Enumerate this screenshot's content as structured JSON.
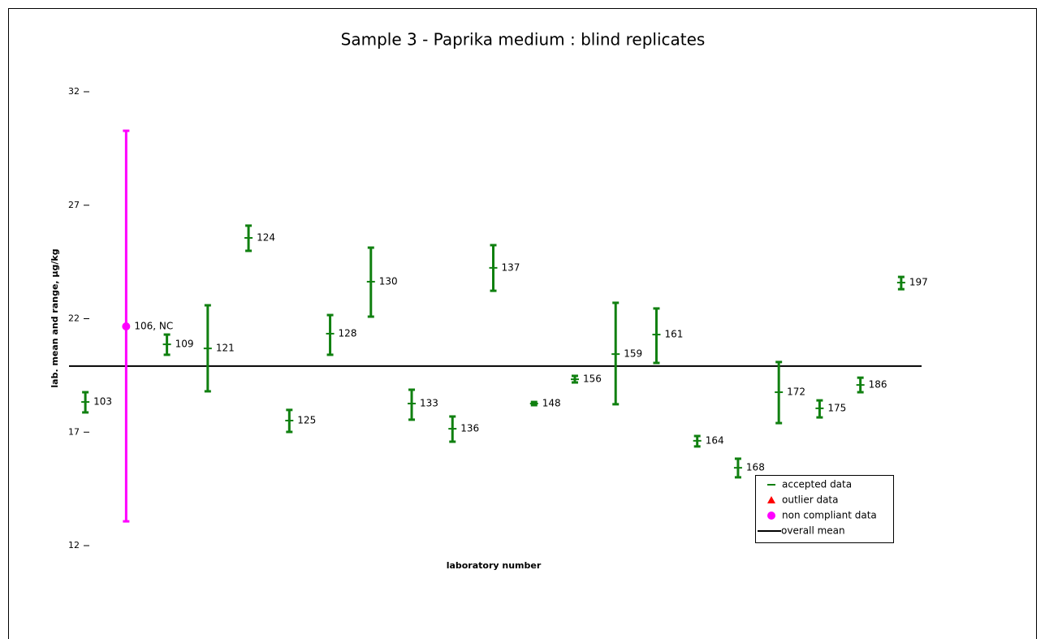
{
  "chart_data": {
    "type": "errorbar",
    "title": "Sample 3 - Paprika medium : blind replicates",
    "xlabel": "laboratory number",
    "ylabel": "lab. mean and range, µg/kg",
    "categories": [
      "103",
      "106, NC",
      "109",
      "121",
      "124",
      "125",
      "128",
      "130",
      "133",
      "136",
      "137",
      "148",
      "156",
      "159",
      "161",
      "164",
      "168",
      "172",
      "175",
      "186",
      "197"
    ],
    "ylim": [
      12,
      32
    ],
    "yticks": [
      12,
      17,
      22,
      27,
      32
    ],
    "legend": "lower right",
    "series": [
      {
        "name": "accepted data",
        "color": "#108010",
        "marker": "dash",
        "values": [
          18.33,
          null,
          20.87,
          20.69,
          25.56,
          17.51,
          21.34,
          23.63,
          18.26,
          17.15,
          24.24,
          18.26,
          19.33,
          20.44,
          21.3,
          16.62,
          15.43,
          18.76,
          18.05,
          19.08,
          23.59
        ],
        "low": [
          17.87,
          null,
          20.41,
          18.8,
          24.99,
          17.01,
          20.41,
          22.09,
          17.55,
          16.58,
          23.23,
          18.19,
          19.19,
          18.23,
          20.05,
          16.37,
          15.01,
          17.4,
          17.65,
          18.76,
          23.3
        ],
        "high": [
          18.76,
          null,
          21.3,
          22.59,
          26.1,
          17.98,
          22.16,
          25.13,
          18.87,
          17.69,
          25.24,
          18.33,
          19.48,
          22.7,
          22.45,
          16.83,
          15.83,
          20.09,
          18.4,
          19.4,
          23.84
        ]
      },
      {
        "name": "outlier data",
        "color": "#ff0000",
        "marker": "triangle",
        "values": [
          null,
          null,
          null,
          null,
          null,
          null,
          null,
          null,
          null,
          null,
          null,
          null,
          null,
          null,
          null,
          null,
          null,
          null,
          null,
          null,
          null
        ],
        "low": [
          null,
          null,
          null,
          null,
          null,
          null,
          null,
          null,
          null,
          null,
          null,
          null,
          null,
          null,
          null,
          null,
          null,
          null,
          null,
          null,
          null
        ],
        "high": [
          null,
          null,
          null,
          null,
          null,
          null,
          null,
          null,
          null,
          null,
          null,
          null,
          null,
          null,
          null,
          null,
          null,
          null,
          null,
          null,
          null
        ]
      },
      {
        "name": "non compliant data",
        "color": "#ff00ff",
        "marker": "circle",
        "values": [
          null,
          21.66,
          null,
          null,
          null,
          null,
          null,
          null,
          null,
          null,
          null,
          null,
          null,
          null,
          null,
          null,
          null,
          null,
          null,
          null,
          null
        ],
        "low": [
          null,
          13.07,
          null,
          null,
          null,
          null,
          null,
          null,
          null,
          null,
          null,
          null,
          null,
          null,
          null,
          null,
          null,
          null,
          null,
          null,
          null
        ],
        "high": [
          null,
          30.28,
          null,
          null,
          null,
          null,
          null,
          null,
          null,
          null,
          null,
          null,
          null,
          null,
          null,
          null,
          null,
          null,
          null,
          null,
          null
        ]
      }
    ],
    "mean_line": {
      "name": "overall mean",
      "value": 19.91,
      "color": "#000000"
    }
  }
}
